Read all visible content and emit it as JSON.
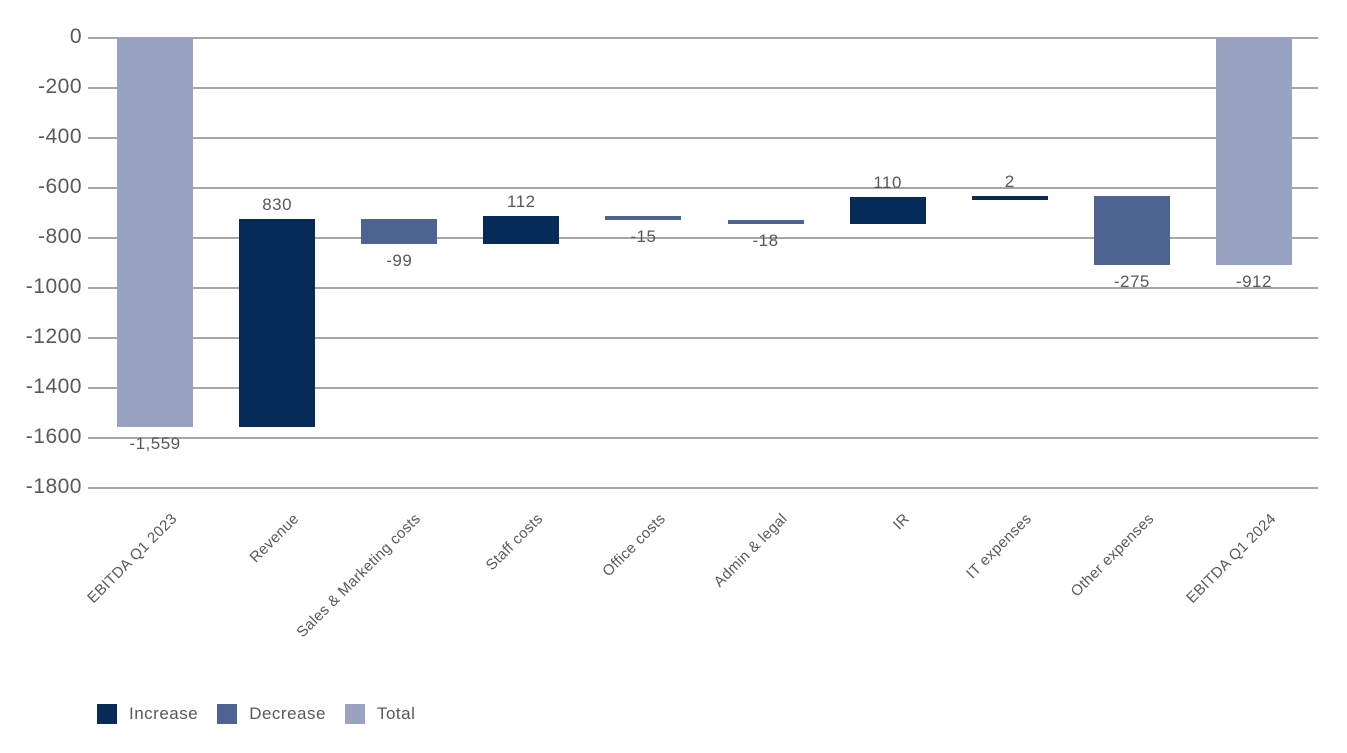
{
  "chart_data": {
    "type": "bar",
    "subtype": "waterfall",
    "categories": [
      "EBITDA Q1 2023",
      "Revenue",
      "Sales & Marketing costs",
      "Staff costs",
      "Office costs",
      "Admin & legal",
      "IR",
      "IT expenses",
      "Other expenses",
      "EBITDA Q1 2024"
    ],
    "values": [
      -1559,
      830,
      -99,
      112,
      -15,
      -18,
      110,
      2,
      -275,
      -912
    ],
    "value_labels": [
      "-1,559",
      "830",
      "-99",
      "112",
      "-15",
      "-18",
      "110",
      "2",
      "-275",
      "-912"
    ],
    "bar_roles": [
      "total",
      "increase",
      "decrease",
      "increase",
      "decrease",
      "decrease",
      "increase",
      "increase",
      "decrease",
      "total"
    ],
    "y_axis": {
      "min": -1800,
      "max": 0,
      "tick_interval": 200,
      "tick_labels": [
        "0",
        "-200",
        "-400",
        "-600",
        "-800",
        "-1000",
        "-1200",
        "-1400",
        "-1600",
        "-1800"
      ]
    },
    "grid": true,
    "legend": {
      "position": "bottom-left",
      "items": [
        {
          "label": "Increase",
          "role": "increase",
          "color": "#062b58"
        },
        {
          "label": "Decrease",
          "role": "decrease",
          "color": "#4d6492"
        },
        {
          "label": "Total",
          "role": "total",
          "color": "#98a3c2"
        }
      ]
    },
    "colors": {
      "gridline": "#a6a6a6",
      "text": "#595959",
      "background": "#ffffff"
    }
  }
}
